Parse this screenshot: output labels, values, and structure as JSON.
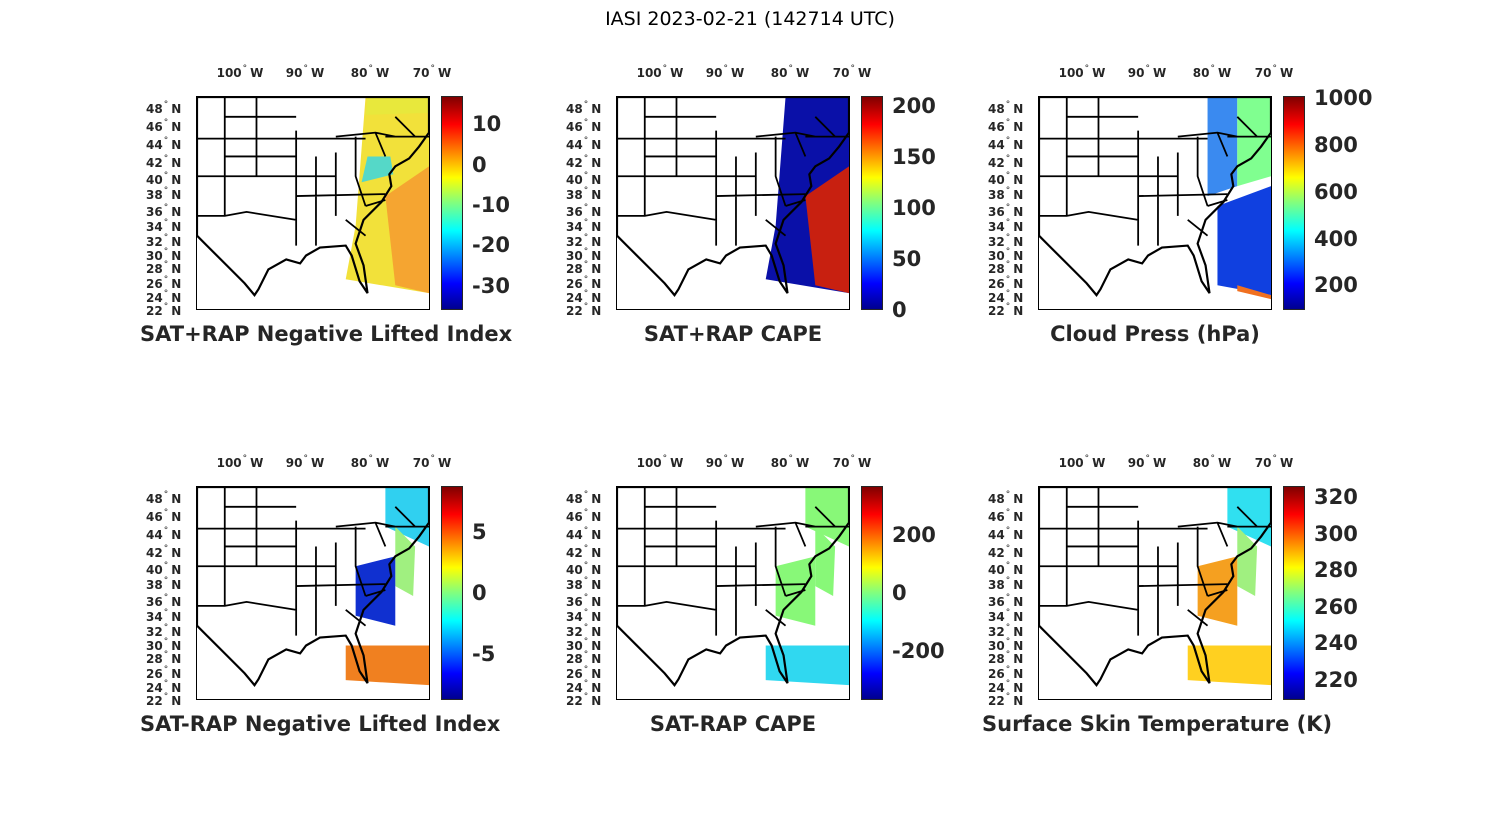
{
  "title": "IASI 2023-02-21 (142714 UTC)",
  "lon_labels": [
    "100",
    "90",
    "80",
    "70"
  ],
  "lon_suffix": "W",
  "lat_labels": [
    "48",
    "46",
    "44",
    "42",
    "40",
    "38",
    "36",
    "34",
    "32",
    "30",
    "28",
    "26",
    "24",
    "22"
  ],
  "lat_suffix": "N",
  "degree_symbol": "°",
  "colormap": "jet",
  "panels": [
    {
      "title": "SAT+RAP Negative Lifted Index",
      "clim": [
        -36,
        17
      ],
      "ticks": [
        "10",
        "0",
        "-10",
        "-20",
        "-30"
      ],
      "tick_values": [
        10,
        0,
        -10,
        -20,
        -30
      ],
      "swath": "full",
      "colors": [
        "#f2e13a",
        "#e8e83c",
        "#55d8c8",
        "#f5a531"
      ]
    },
    {
      "title": "SAT+RAP CAPE",
      "clim": [
        0,
        210
      ],
      "ticks": [
        "200",
        "150",
        "100",
        "50",
        "0"
      ],
      "tick_values": [
        200,
        150,
        100,
        50,
        0
      ],
      "swath": "full",
      "colors": [
        "#0a10a8",
        "#0a10a8",
        "#0a10a8",
        "#c82010"
      ]
    },
    {
      "title": "Cloud Press (hPa)",
      "clim": [
        95,
        1010
      ],
      "ticks": [
        "1000",
        "800",
        "600",
        "400",
        "200"
      ],
      "tick_values": [
        1000,
        800,
        600,
        400,
        200
      ],
      "swath": "cloud",
      "colors": [
        "#3a8af0",
        "#80ff90",
        "#1040e0",
        "#f07020"
      ]
    },
    {
      "title": "SAT-RAP Negative Lifted Index",
      "clim": [
        -8.7,
        8.7
      ],
      "ticks": [
        "5",
        "0",
        "-5"
      ],
      "tick_values": [
        5,
        0,
        -5
      ],
      "swath": "partial",
      "colors": [
        "#30d0f0",
        "#a0f080",
        "#1030d0",
        "#f08020"
      ]
    },
    {
      "title": "SAT-RAP CAPE",
      "clim": [
        -370,
        370
      ],
      "ticks": [
        "200",
        "0",
        "-200"
      ],
      "tick_values": [
        200,
        0,
        -200
      ],
      "swath": "partial",
      "colors": [
        "#88f878",
        "#88f878",
        "#88f878",
        "#30d8f0"
      ]
    },
    {
      "title": "Surface Skin Temperature (K)",
      "clim": [
        209,
        326
      ],
      "ticks": [
        "320",
        "300",
        "280",
        "260",
        "240",
        "220"
      ],
      "tick_values": [
        320,
        300,
        280,
        260,
        240,
        220
      ],
      "swath": "partial",
      "colors": [
        "#30e0f0",
        "#a0f080",
        "#f5a020",
        "#ffd020"
      ]
    }
  ]
}
